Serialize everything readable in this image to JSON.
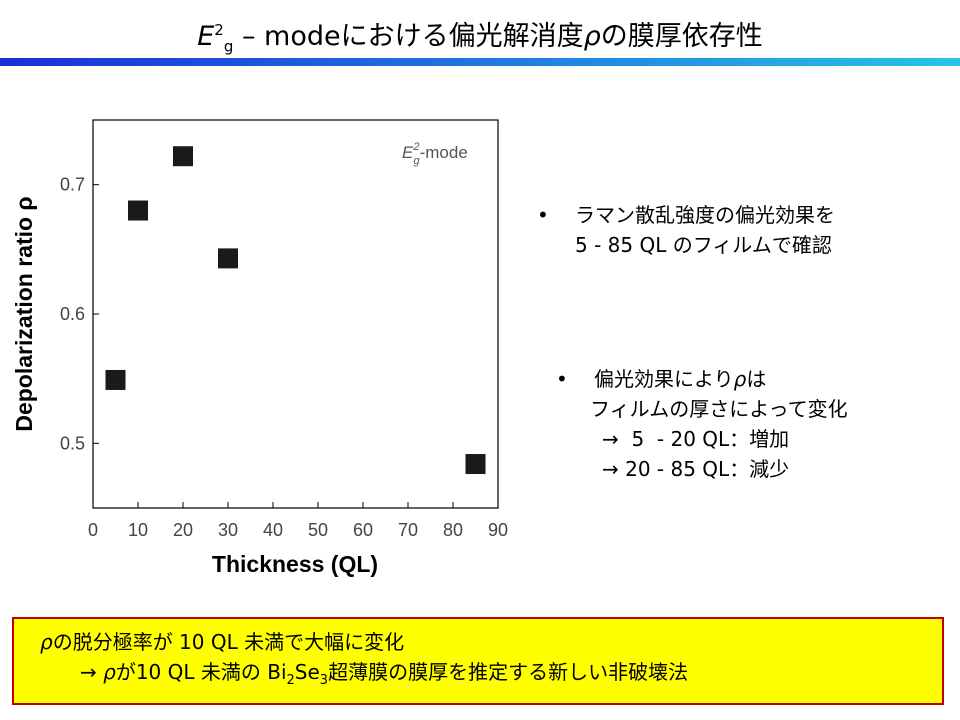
{
  "header": {
    "title_sym": "E",
    "title_sup": "2",
    "title_sub": "g",
    "title_rest": " – modeにおける偏光解消度",
    "title_rho": "ρ",
    "title_tail": "の膜厚依存性"
  },
  "bullets": [
    {
      "symbol": "•",
      "lines": [
        "ラマン散乱強度の偏光効果を",
        "5 - 85 QL のフィルムで確認"
      ]
    },
    {
      "symbol": "•",
      "line1_prefix": "偏光効果により",
      "line1_rho": "ρ",
      "line1_suffix": "は",
      "line2": "フィルムの厚さによって変化",
      "arrows": [
        "→  5  - 20 QL：増加",
        "→ 20 - 85 QL：減少"
      ]
    }
  ],
  "summary": {
    "line1_rho": "ρ",
    "line1_text": "の脱分極率が 10 QL 未満で大幅に変化",
    "line2_arrow": "→ ",
    "line2_rho": "ρ",
    "line2_a": "が10 QL 未満の Bi",
    "line2_sub1": "2",
    "line2_b": "Se",
    "line2_sub2": "3",
    "line2_c": "超薄膜の膜厚を推定する新しい非破壊法"
  },
  "colors": {
    "title_bar_start": "#1a2fd6",
    "title_bar_end": "#27c4e6",
    "box_fill": "#ffff00",
    "box_border": "#c00000",
    "marker": "#1a1a1a"
  },
  "chart_data": {
    "type": "scatter",
    "x": [
      5,
      10,
      20,
      30,
      85
    ],
    "y": [
      0.549,
      0.68,
      0.722,
      0.643,
      0.484
    ],
    "xlabel": "Thickness (QL)",
    "ylabel": "Depolarization ratio ρ",
    "xlim": [
      0,
      90
    ],
    "ylim": [
      0.45,
      0.75
    ],
    "xticks": [
      "0",
      "10",
      "20",
      "30",
      "40",
      "50",
      "60",
      "70",
      "80",
      "90"
    ],
    "yticks": [
      "0.5",
      "0.6",
      "0.7"
    ],
    "annotation_sym": "E",
    "annotation_sup": "2",
    "annotation_sub": "g",
    "annotation_rest": "-mode",
    "grid": false
  }
}
